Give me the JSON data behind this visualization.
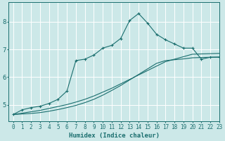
{
  "xlabel": "Humidex (Indice chaleur)",
  "bg_color": "#cce8e8",
  "grid_color": "#ffffff",
  "line_color": "#1a6e6e",
  "xlim": [
    -0.5,
    23
  ],
  "ylim": [
    4.4,
    8.7
  ],
  "xticks": [
    0,
    1,
    2,
    3,
    4,
    5,
    6,
    7,
    8,
    9,
    10,
    11,
    12,
    13,
    14,
    15,
    16,
    17,
    18,
    19,
    20,
    21,
    22,
    23
  ],
  "yticks": [
    5,
    6,
    7,
    8
  ],
  "series1_x": [
    0,
    1,
    2,
    3,
    4,
    5,
    6,
    7,
    8,
    9,
    10,
    11,
    12,
    13,
    14,
    15,
    16,
    17,
    18,
    19,
    20,
    21,
    22,
    23
  ],
  "series1_y": [
    4.65,
    4.82,
    4.9,
    4.95,
    5.05,
    5.2,
    5.5,
    6.6,
    6.65,
    6.8,
    7.05,
    7.15,
    7.4,
    8.05,
    8.3,
    7.95,
    7.55,
    7.35,
    7.2,
    7.05,
    7.05,
    6.65,
    6.72,
    6.72
  ],
  "series2_x": [
    0,
    1,
    2,
    3,
    4,
    5,
    6,
    7,
    8,
    9,
    10,
    11,
    12,
    13,
    14,
    15,
    16,
    17,
    18,
    19,
    20,
    21,
    22,
    23
  ],
  "series2_y": [
    4.65,
    4.7,
    4.75,
    4.8,
    4.87,
    4.94,
    5.01,
    5.1,
    5.2,
    5.32,
    5.46,
    5.6,
    5.76,
    5.92,
    6.08,
    6.24,
    6.4,
    6.56,
    6.65,
    6.74,
    6.83,
    6.84,
    6.85,
    6.86
  ],
  "series3_x": [
    0,
    1,
    2,
    3,
    4,
    5,
    6,
    7,
    8,
    9,
    10,
    11,
    12,
    13,
    14,
    15,
    16,
    17,
    18,
    19,
    20,
    21,
    22,
    23
  ],
  "series3_y": [
    4.65,
    4.67,
    4.69,
    4.72,
    4.77,
    4.83,
    4.9,
    4.98,
    5.08,
    5.2,
    5.35,
    5.52,
    5.7,
    5.9,
    6.1,
    6.3,
    6.5,
    6.6,
    6.63,
    6.66,
    6.7,
    6.71,
    6.72,
    6.73
  ]
}
